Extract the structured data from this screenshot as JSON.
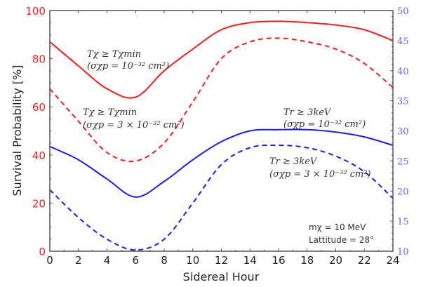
{
  "chart_data": {
    "type": "line",
    "title": "",
    "xlabel": "Sidereal Hour",
    "ylabel": "Survival Probability [%]",
    "xlim": [
      0,
      24
    ],
    "ylim": [
      0,
      100
    ],
    "y2lim": [
      10,
      50
    ],
    "x_ticks": [
      "0",
      "2",
      "4",
      "6",
      "8",
      "10",
      "12",
      "14",
      "16",
      "18",
      "20",
      "22",
      "24"
    ],
    "y_ticks": [
      "0",
      "20",
      "40",
      "60",
      "80",
      "100"
    ],
    "y2_ticks": [
      "10",
      "15",
      "20",
      "25",
      "30",
      "35",
      "40",
      "45",
      "50"
    ],
    "grid": false,
    "colors": {
      "left_axis": "#ff1a1a",
      "right_axis": "#6666ff",
      "red": "#ff1a1a",
      "blue": "#1a1aff"
    },
    "x": [
      0,
      2,
      4,
      6,
      8,
      10,
      12,
      14,
      16,
      18,
      20,
      22,
      24
    ],
    "series": [
      {
        "name": "T_chi >= T_chi^min (sigma_chi_p = 1e-32 cm^2)",
        "color": "red",
        "style": "solid",
        "values": [
          87,
          77,
          67.5,
          64,
          75,
          84,
          92,
          95,
          95.5,
          95,
          94,
          92,
          87.5
        ]
      },
      {
        "name": "T_chi >= T_chi^min (sigma_chi_p = 3e-32 cm^2)",
        "color": "red",
        "style": "dashed",
        "values": [
          67.5,
          54,
          41,
          37.5,
          45,
          62,
          80,
          87,
          88.5,
          87,
          84,
          78,
          68
        ]
      },
      {
        "name": "T_r >= 3keV (sigma_chi_p = 1e-32 cm^2)",
        "color": "blue",
        "style": "solid",
        "values": [
          43.5,
          38,
          30,
          22.5,
          29,
          38,
          45.5,
          50,
          50.5,
          50.5,
          49.5,
          47.5,
          44
        ]
      },
      {
        "name": "T_r >= 3keV (sigma_chi_p = 3e-32 cm^2)",
        "color": "blue",
        "style": "dashed",
        "values": [
          25.5,
          14,
          5,
          0.5,
          5,
          20,
          36,
          43,
          44,
          43,
          39.5,
          33,
          22
        ]
      }
    ],
    "annotations": {
      "red_solid_line1": "Tχ ≥ Tχmin",
      "red_solid_line2": "(σχp = 10⁻³² cm²)",
      "red_dashed_line1": "Tχ ≥ Tχmin",
      "red_dashed_line2": "(σχp = 3 × 10⁻³² cm²)",
      "blue_solid_line1": "Tr ≥ 3keV",
      "blue_solid_line2": "(σχp = 10⁻³² cm²)",
      "blue_dashed_line1": "Tr ≥ 3keV",
      "blue_dashed_line2": "(σχp = 3 × 10⁻³² cm²)",
      "mass": "mχ = 10 MeV",
      "latitude": "Lattitude = 28°"
    }
  }
}
